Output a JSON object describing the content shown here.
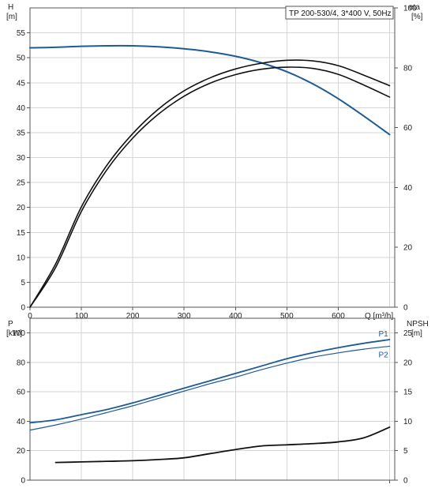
{
  "title": "TP 200-530/4, 3*400 V, 50Hz",
  "colors": {
    "blue": "#1f5b93",
    "black": "#111111",
    "grid": "#d6d6d6"
  },
  "chart_data": [
    {
      "type": "line",
      "x_label": "Q [m³/h]",
      "xlim": [
        0,
        710
      ],
      "x_ticks": [
        0,
        100,
        200,
        300,
        400,
        500,
        600
      ],
      "y_left": {
        "name": "H",
        "unit": "[m]",
        "lim": [
          0,
          60
        ],
        "ticks": [
          0,
          5,
          10,
          15,
          20,
          25,
          30,
          35,
          40,
          45,
          50,
          55
        ]
      },
      "y_right": {
        "name": "eta",
        "unit": "[%]",
        "lim": [
          0,
          100
        ],
        "ticks": [
          0,
          20,
          40,
          60,
          80,
          100
        ]
      },
      "grid": true,
      "series": [
        {
          "axis": "left",
          "color": "#1f5b93",
          "points": [
            [
              0,
              52
            ],
            [
              50,
              52.1
            ],
            [
              100,
              52.3
            ],
            [
              150,
              52.4
            ],
            [
              200,
              52.4
            ],
            [
              250,
              52.2
            ],
            [
              300,
              51.8
            ],
            [
              350,
              51.2
            ],
            [
              400,
              50.3
            ],
            [
              450,
              49
            ],
            [
              500,
              47.2
            ],
            [
              550,
              44.8
            ],
            [
              600,
              41.8
            ],
            [
              650,
              38.3
            ],
            [
              700,
              34.6
            ]
          ]
        },
        {
          "axis": "right",
          "color": "#111111",
          "points": [
            [
              0,
              0
            ],
            [
              50,
              13.3
            ],
            [
              100,
              32
            ],
            [
              150,
              46
            ],
            [
              200,
              56.5
            ],
            [
              250,
              64.5
            ],
            [
              300,
              70.5
            ],
            [
              350,
              74.8
            ],
            [
              400,
              77.7
            ],
            [
              450,
              79.5
            ],
            [
              500,
              80.2
            ],
            [
              550,
              79.8
            ],
            [
              600,
              77.8
            ],
            [
              650,
              74.2
            ],
            [
              700,
              70.2
            ]
          ]
        },
        {
          "axis": "right",
          "color": "#111111",
          "points": [
            [
              0,
              0
            ],
            [
              50,
              14.5
            ],
            [
              100,
              33.5
            ],
            [
              150,
              47.5
            ],
            [
              200,
              58
            ],
            [
              250,
              66.2
            ],
            [
              300,
              72.3
            ],
            [
              350,
              76.6
            ],
            [
              400,
              79.6
            ],
            [
              450,
              81.5
            ],
            [
              500,
              82.5
            ],
            [
              550,
              82.3
            ],
            [
              600,
              80.7
            ],
            [
              650,
              77.5
            ],
            [
              700,
              74
            ]
          ]
        }
      ]
    },
    {
      "type": "line",
      "xlim": [
        0,
        710
      ],
      "y_left": {
        "name": "P",
        "unit": "[kW]",
        "lim": [
          0,
          110
        ],
        "ticks": [
          0,
          20,
          40,
          60,
          80,
          100
        ]
      },
      "y_right": {
        "name": "NPSH",
        "unit": "[m]",
        "lim": [
          0,
          27.5
        ],
        "ticks": [
          0,
          5,
          10,
          15,
          20,
          25
        ]
      },
      "grid": true,
      "series": [
        {
          "name": "P1",
          "axis": "left",
          "color": "#1f5b93",
          "points": [
            [
              0,
              39
            ],
            [
              50,
              41
            ],
            [
              100,
              44.5
            ],
            [
              150,
              48
            ],
            [
              200,
              52.5
            ],
            [
              250,
              57.5
            ],
            [
              300,
              62.5
            ],
            [
              350,
              67.5
            ],
            [
              400,
              72.5
            ],
            [
              450,
              77.5
            ],
            [
              500,
              82.5
            ],
            [
              550,
              86.5
            ],
            [
              600,
              90
            ],
            [
              650,
              93
            ],
            [
              700,
              95.5
            ]
          ]
        },
        {
          "name": "P2",
          "axis": "left",
          "color": "#1f5b93",
          "points": [
            [
              0,
              34
            ],
            [
              50,
              37.5
            ],
            [
              100,
              41.5
            ],
            [
              150,
              46
            ],
            [
              200,
              50.5
            ],
            [
              250,
              55.5
            ],
            [
              300,
              60.5
            ],
            [
              350,
              65.5
            ],
            [
              400,
              70
            ],
            [
              450,
              75
            ],
            [
              500,
              79.5
            ],
            [
              550,
              83.5
            ],
            [
              600,
              86.5
            ],
            [
              650,
              89
            ],
            [
              700,
              91
            ]
          ]
        },
        {
          "axis": "right",
          "color": "#111111",
          "points": [
            [
              50,
              3
            ],
            [
              100,
              3.1
            ],
            [
              150,
              3.2
            ],
            [
              200,
              3.3
            ],
            [
              250,
              3.5
            ],
            [
              300,
              3.8
            ],
            [
              350,
              4.5
            ],
            [
              400,
              5.2
            ],
            [
              450,
              5.8
            ],
            [
              500,
              6
            ],
            [
              550,
              6.2
            ],
            [
              600,
              6.5
            ],
            [
              650,
              7.2
            ],
            [
              700,
              9
            ]
          ]
        }
      ]
    }
  ]
}
